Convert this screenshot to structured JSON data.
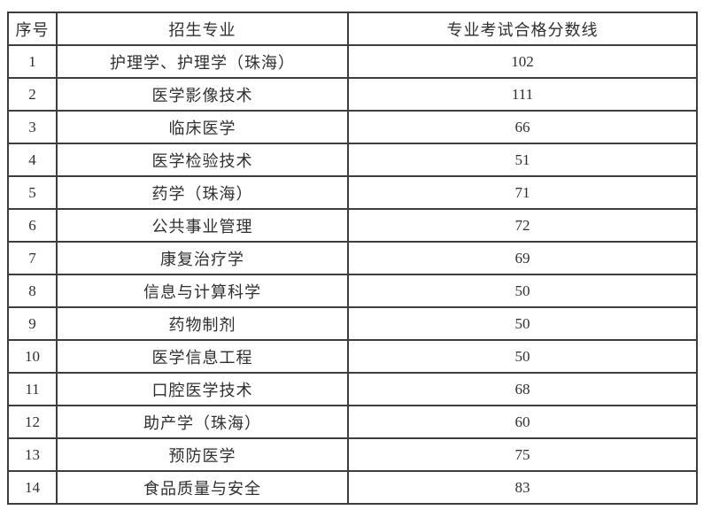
{
  "table": {
    "columns": [
      "序号",
      "招生专业",
      "专业考试合格分数线"
    ],
    "rows": [
      {
        "no": "1",
        "major": "护理学、护理学（珠海）",
        "score": "102"
      },
      {
        "no": "2",
        "major": "医学影像技术",
        "score": "111"
      },
      {
        "no": "3",
        "major": "临床医学",
        "score": "66"
      },
      {
        "no": "4",
        "major": "医学检验技术",
        "score": "51"
      },
      {
        "no": "5",
        "major": "药学（珠海）",
        "score": "71"
      },
      {
        "no": "6",
        "major": "公共事业管理",
        "score": "72"
      },
      {
        "no": "7",
        "major": "康复治疗学",
        "score": "69"
      },
      {
        "no": "8",
        "major": "信息与计算科学",
        "score": "50"
      },
      {
        "no": "9",
        "major": "药物制剂",
        "score": "50"
      },
      {
        "no": "10",
        "major": "医学信息工程",
        "score": "50"
      },
      {
        "no": "11",
        "major": "口腔医学技术",
        "score": "68"
      },
      {
        "no": "12",
        "major": "助产学（珠海）",
        "score": "60"
      },
      {
        "no": "13",
        "major": "预防医学",
        "score": "75"
      },
      {
        "no": "14",
        "major": "食品质量与安全",
        "score": "83"
      }
    ],
    "colors": {
      "border": "#3d3d3d",
      "text": "#2f2f2f",
      "background": "#ffffff"
    }
  }
}
